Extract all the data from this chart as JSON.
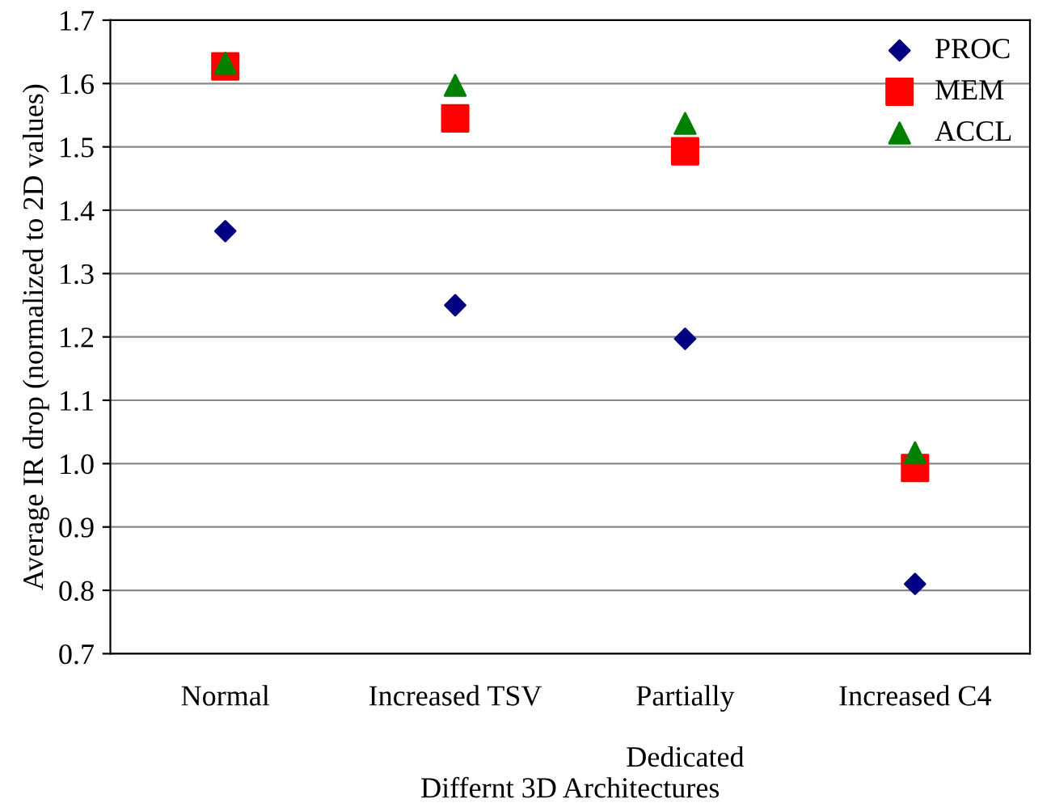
{
  "chart_data": {
    "type": "scatter",
    "xlabel": "Differnt 3D Architectures",
    "ylabel": "Average IR drop (normalized to 2D values)",
    "categories": [
      "Normal",
      "Increased TSV",
      "Partially\n\nDedicated",
      "Increased C4"
    ],
    "series": [
      {
        "name": "PROC",
        "color": "#000080",
        "marker": "diamond",
        "values": [
          1.367,
          1.25,
          1.197,
          0.81
        ]
      },
      {
        "name": "MEM",
        "color": "#ff0000",
        "marker": "square",
        "values": [
          1.627,
          1.545,
          1.493,
          0.993
        ]
      },
      {
        "name": "ACCL",
        "color": "#008000",
        "marker": "triangle",
        "values": [
          1.632,
          1.597,
          1.537,
          1.017
        ]
      }
    ],
    "ylim": [
      0.7,
      1.7
    ],
    "yticks": [
      0.7,
      0.8,
      0.9,
      {
        "value": 1,
        "label": "1.0"
      },
      1.1,
      1.2,
      1.3,
      1.4,
      1.5,
      1.6,
      1.7
    ],
    "grid": "y",
    "legend": "top right"
  }
}
